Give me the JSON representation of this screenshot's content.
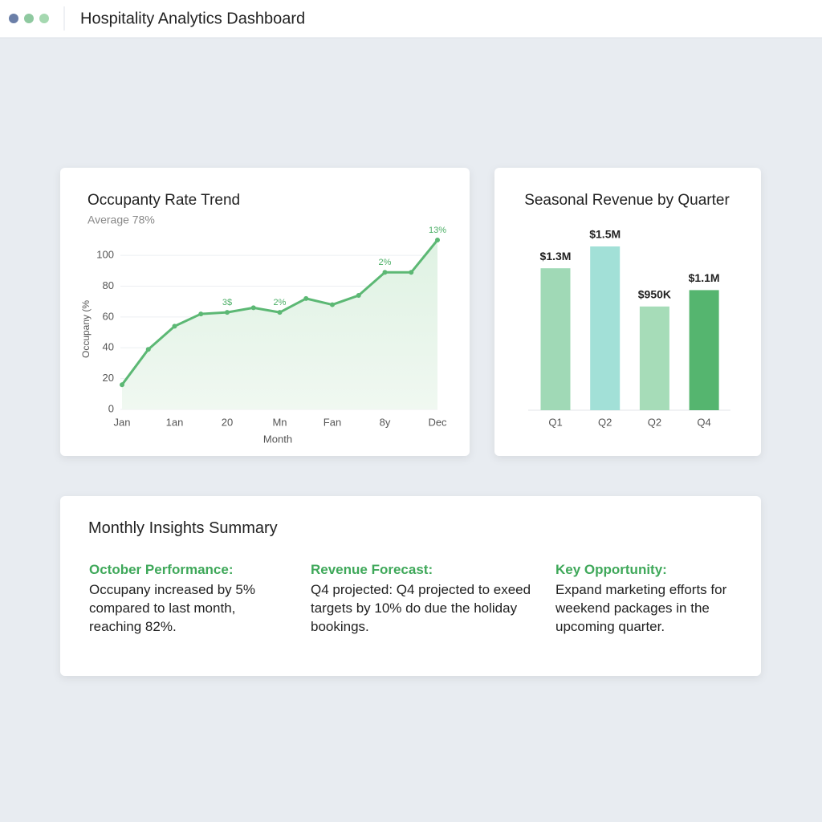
{
  "window": {
    "title": "Hospitality Analytics Dashboard"
  },
  "chart_data": [
    {
      "type": "line",
      "title": "Occupanty Rate Trend",
      "subtitle": "Average 78%",
      "y_label": "Occupany (%",
      "x_label": "Month",
      "categories": [
        "Jan",
        null,
        "1an",
        null,
        "20",
        null,
        "Mn",
        null,
        "Fan",
        null,
        "8y",
        null,
        "Dec"
      ],
      "values": [
        16,
        39,
        54,
        62,
        63,
        66,
        63,
        72,
        68,
        74,
        89,
        89,
        110
      ],
      "point_labels": [
        null,
        null,
        null,
        null,
        "3$",
        null,
        "2%",
        null,
        null,
        null,
        "2%",
        null,
        "13%"
      ],
      "color": "#5cb874",
      "ylim": [
        0,
        110
      ],
      "yticks": [
        0,
        20,
        40,
        60,
        80,
        100
      ],
      "grid": true
    },
    {
      "type": "bar",
      "title": "Seasonal Revenue by Quarter",
      "categories": [
        "Q1",
        "Q2",
        "Q2",
        "Q4"
      ],
      "values": [
        1300000,
        1500000,
        950000,
        1100000
      ],
      "value_labels": [
        "$1.3M",
        "$1.5M",
        "$950K",
        "$1.1M"
      ],
      "colors": [
        "#a0d9b6",
        "#a2e0d7",
        "#a6dcb8",
        "#55b56f"
      ]
    }
  ],
  "summary": {
    "title": "Monthly Insights Summary",
    "items": [
      {
        "heading": "October Performance:",
        "text": "Occupany increased by 5% compared to last month, reaching 82%."
      },
      {
        "heading": "Revenue Forecast:",
        "text": "Q4 projected: Q4 projected to exeed targets by 10% do due the holiday bookings."
      },
      {
        "heading": "Key Opportunity:",
        "text": "Expand marketing efforts for weekend packages in the upcoming quarter."
      }
    ]
  }
}
